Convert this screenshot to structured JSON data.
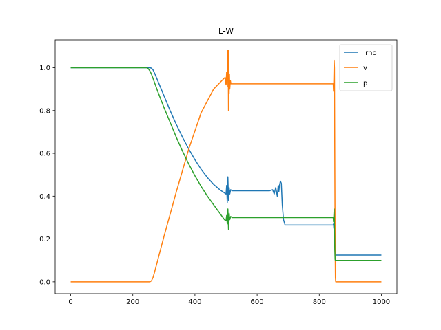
{
  "chart_data": {
    "type": "line",
    "title": "L-W",
    "xlabel": "",
    "ylabel": "",
    "xlim": [
      -50,
      1050
    ],
    "ylim": [
      -0.055,
      1.13
    ],
    "xticks": [
      0,
      200,
      400,
      600,
      800,
      1000
    ],
    "yticks": [
      0.0,
      0.2,
      0.4,
      0.6,
      0.8,
      1.0
    ],
    "xtick_labels": [
      "0",
      "200",
      "400",
      "600",
      "800",
      "1000"
    ],
    "ytick_labels": [
      "0.0",
      "0.2",
      "0.4",
      "0.6",
      "0.8",
      "1.0"
    ],
    "legend": "top-right",
    "grid": false,
    "series": [
      {
        "name": " rho",
        "color": "#1f77b4",
        "x": [
          0,
          250,
          255,
          260,
          265,
          270,
          280,
          300,
          320,
          340,
          360,
          380,
          400,
          420,
          440,
          460,
          480,
          495,
          500,
          502,
          504,
          506,
          508,
          510,
          512,
          515,
          520,
          600,
          640,
          650,
          655,
          660,
          665,
          668,
          670,
          672,
          675,
          678,
          681,
          685,
          690,
          692,
          700,
          800,
          845,
          846,
          847,
          848,
          849,
          850,
          851,
          852,
          853,
          1000
        ],
        "y": [
          1.0,
          1.0,
          1.0,
          0.998,
          0.99,
          0.975,
          0.94,
          0.87,
          0.8,
          0.735,
          0.675,
          0.62,
          0.57,
          0.525,
          0.487,
          0.455,
          0.43,
          0.415,
          0.41,
          0.45,
          0.37,
          0.49,
          0.38,
          0.44,
          0.41,
          0.43,
          0.425,
          0.425,
          0.425,
          0.43,
          0.41,
          0.44,
          0.4,
          0.45,
          0.42,
          0.45,
          0.47,
          0.46,
          0.36,
          0.29,
          0.265,
          0.265,
          0.265,
          0.265,
          0.265,
          0.27,
          0.25,
          0.28,
          0.26,
          0.2,
          0.14,
          0.125,
          0.125,
          0.125
        ]
      },
      {
        "name": "v",
        "color": "#ff7f0e",
        "x": [
          0,
          255,
          260,
          265,
          270,
          280,
          300,
          340,
          380,
          420,
          460,
          490,
          497,
          500,
          502,
          504,
          505,
          506,
          507,
          508,
          509,
          510,
          511,
          512,
          514,
          516,
          520,
          600,
          700,
          800,
          845,
          846,
          847,
          848,
          849,
          850,
          851,
          852,
          853,
          855,
          1000
        ],
        "y": [
          0.0,
          0.0,
          0.005,
          0.02,
          0.045,
          0.1,
          0.21,
          0.42,
          0.62,
          0.79,
          0.9,
          0.945,
          0.955,
          0.92,
          0.98,
          0.91,
          1.08,
          0.97,
          1.08,
          0.8,
          1.08,
          0.88,
          0.97,
          0.9,
          0.94,
          0.925,
          0.925,
          0.925,
          0.925,
          0.925,
          0.925,
          0.89,
          0.95,
          1.035,
          1.0,
          0.6,
          0.2,
          0.02,
          0.0,
          0.0,
          0.0
        ]
      },
      {
        "name": "p",
        "color": "#2ca02c",
        "x": [
          0,
          245,
          250,
          255,
          260,
          265,
          270,
          280,
          300,
          320,
          340,
          360,
          380,
          400,
          420,
          440,
          460,
          480,
          495,
          500,
          502,
          504,
          506,
          508,
          510,
          512,
          515,
          520,
          600,
          700,
          800,
          845,
          846,
          847,
          848,
          849,
          850,
          851,
          852,
          853,
          1000
        ],
        "y": [
          1.0,
          1.0,
          0.995,
          0.985,
          0.97,
          0.95,
          0.93,
          0.89,
          0.815,
          0.745,
          0.675,
          0.61,
          0.55,
          0.495,
          0.445,
          0.4,
          0.36,
          0.32,
          0.29,
          0.285,
          0.31,
          0.27,
          0.34,
          0.245,
          0.32,
          0.29,
          0.305,
          0.3,
          0.3,
          0.3,
          0.3,
          0.3,
          0.28,
          0.31,
          0.34,
          0.25,
          0.15,
          0.105,
          0.1,
          0.1,
          0.1
        ]
      }
    ]
  }
}
